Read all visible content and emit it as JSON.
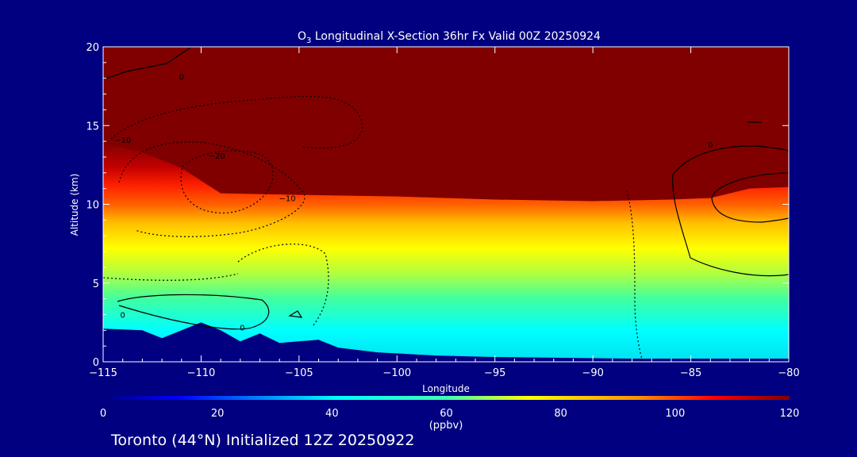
{
  "chart_data": {
    "type": "heatmap",
    "title_prefix": "O",
    "title_sub": "3",
    "title_rest": " Longitudinal X-Section 36hr  Fx Valid 00Z 20250924",
    "xlabel": "Longitude",
    "ylabel": "Altitude (km)",
    "xlim": [
      -115,
      -80
    ],
    "ylim": [
      0,
      20
    ],
    "x_ticks": [
      -115,
      -110,
      -105,
      -100,
      -95,
      -90,
      -85,
      -80
    ],
    "x_tick_labels": [
      "−115",
      "−110",
      "−105",
      "−100",
      "−95",
      "−90",
      "−85",
      "−80"
    ],
    "y_ticks": [
      0,
      5,
      10,
      15,
      20
    ],
    "y_tick_labels": [
      "0",
      "5",
      "10",
      "15",
      "20"
    ],
    "colorbar": {
      "min": 0,
      "max": 120,
      "ticks": [
        0,
        20,
        40,
        60,
        80,
        100,
        120
      ],
      "tick_labels": [
        "0",
        "20",
        "40",
        "60",
        "80",
        "100",
        "120"
      ],
      "unit": "(ppbv)"
    },
    "footer": "Toronto (44°N) Initialized 12Z 20250922",
    "terrain": [
      {
        "lon": -115,
        "alt": 2.1
      },
      {
        "lon": -113,
        "alt": 2.0
      },
      {
        "lon": -112,
        "alt": 1.5
      },
      {
        "lon": -110,
        "alt": 2.5
      },
      {
        "lon": -109,
        "alt": 2.0
      },
      {
        "lon": -108,
        "alt": 1.3
      },
      {
        "lon": -107,
        "alt": 1.8
      },
      {
        "lon": -106,
        "alt": 1.2
      },
      {
        "lon": -104,
        "alt": 1.4
      },
      {
        "lon": -103,
        "alt": 0.9
      },
      {
        "lon": -101,
        "alt": 0.6
      },
      {
        "lon": -98,
        "alt": 0.4
      },
      {
        "lon": -95,
        "alt": 0.3
      },
      {
        "lon": -88,
        "alt": 0.2
      },
      {
        "lon": -80,
        "alt": 0.2
      }
    ],
    "tropopause_km": [
      {
        "lon": -115,
        "alt": 13.9
      },
      {
        "lon": -113,
        "alt": 13.3
      },
      {
        "lon": -111,
        "alt": 12.3
      },
      {
        "lon": -109,
        "alt": 10.7
      },
      {
        "lon": -105,
        "alt": 10.6
      },
      {
        "lon": -100,
        "alt": 10.5
      },
      {
        "lon": -95,
        "alt": 10.3
      },
      {
        "lon": -90,
        "alt": 10.2
      },
      {
        "lon": -86,
        "alt": 10.3
      },
      {
        "lon": -84,
        "alt": 10.4
      },
      {
        "lon": -82,
        "alt": 11.0
      },
      {
        "lon": -80,
        "alt": 11.1
      }
    ],
    "contour_labels": [
      {
        "text": "0",
        "lon": -111.0,
        "alt": 17.9
      },
      {
        "text": "−10",
        "lon": -114.0,
        "alt": 13.9
      },
      {
        "text": "−20",
        "lon": -109.2,
        "alt": 12.9
      },
      {
        "text": "−10",
        "lon": -105.6,
        "alt": 10.2
      },
      {
        "text": "0",
        "lon": -114.0,
        "alt": 2.8
      },
      {
        "text": "0",
        "lon": -107.9,
        "alt": 2.0
      },
      {
        "text": "0",
        "lon": -84.0,
        "alt": 13.6
      }
    ]
  }
}
